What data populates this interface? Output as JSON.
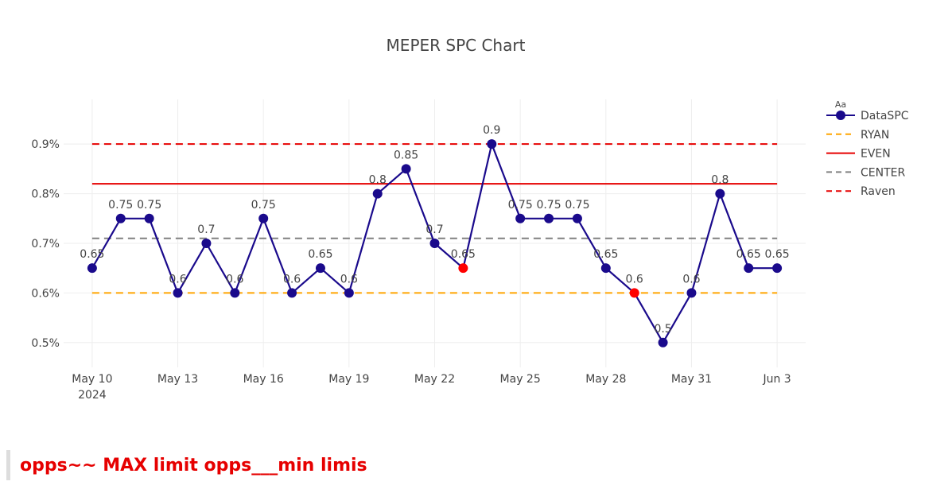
{
  "chart_data": {
    "type": "line",
    "title": "MEPER SPC Chart",
    "xlabel": "",
    "ylabel": "",
    "x_ticks": [
      {
        "date": "2024-05-10",
        "label": "May 10",
        "sublabel": "2024"
      },
      {
        "date": "2024-05-13",
        "label": "May 13",
        "sublabel": ""
      },
      {
        "date": "2024-05-16",
        "label": "May 16",
        "sublabel": ""
      },
      {
        "date": "2024-05-19",
        "label": "May 19",
        "sublabel": ""
      },
      {
        "date": "2024-05-22",
        "label": "May 22",
        "sublabel": ""
      },
      {
        "date": "2024-05-25",
        "label": "May 25",
        "sublabel": ""
      },
      {
        "date": "2024-05-28",
        "label": "May 28",
        "sublabel": ""
      },
      {
        "date": "2024-05-31",
        "label": "May 31",
        "sublabel": ""
      },
      {
        "date": "2024-06-03",
        "label": "Jun 3",
        "sublabel": ""
      }
    ],
    "y_ticks": [
      {
        "value": 0.5,
        "label": "0.5%"
      },
      {
        "value": 0.6,
        "label": "0.6%"
      },
      {
        "value": 0.7,
        "label": "0.7%"
      },
      {
        "value": 0.8,
        "label": "0.8%"
      },
      {
        "value": 0.9,
        "label": "0.9%"
      }
    ],
    "xlim": [
      "2024-05-09",
      "2024-06-04"
    ],
    "ylim": [
      0.45,
      0.99
    ],
    "grid": true,
    "legend_position": "top-right",
    "legend_hint": "Aa",
    "series": [
      {
        "name": "DataSPC",
        "color": "#1a0a8c",
        "highlight_color": "#ff0000",
        "points": [
          {
            "x": "2024-05-10",
            "y": 0.65,
            "label": "0.65"
          },
          {
            "x": "2024-05-11",
            "y": 0.75,
            "label": "0.75"
          },
          {
            "x": "2024-05-12",
            "y": 0.75,
            "label": "0.75"
          },
          {
            "x": "2024-05-13",
            "y": 0.6,
            "label": "0.6"
          },
          {
            "x": "2024-05-14",
            "y": 0.7,
            "label": "0.7"
          },
          {
            "x": "2024-05-15",
            "y": 0.6,
            "label": "0.6"
          },
          {
            "x": "2024-05-16",
            "y": 0.75,
            "label": "0.75"
          },
          {
            "x": "2024-05-17",
            "y": 0.6,
            "label": "0.6"
          },
          {
            "x": "2024-05-18",
            "y": 0.65,
            "label": "0.65"
          },
          {
            "x": "2024-05-19",
            "y": 0.6,
            "label": "0.6"
          },
          {
            "x": "2024-05-20",
            "y": 0.8,
            "label": "0.8"
          },
          {
            "x": "2024-05-21",
            "y": 0.85,
            "label": "0.85"
          },
          {
            "x": "2024-05-22",
            "y": 0.7,
            "label": "0.7"
          },
          {
            "x": "2024-05-23",
            "y": 0.65,
            "label": "0.65",
            "highlight": true
          },
          {
            "x": "2024-05-24",
            "y": 0.9,
            "label": "0.9"
          },
          {
            "x": "2024-05-25",
            "y": 0.75,
            "label": "0.75"
          },
          {
            "x": "2024-05-26",
            "y": 0.75,
            "label": "0.75"
          },
          {
            "x": "2024-05-27",
            "y": 0.75,
            "label": "0.75"
          },
          {
            "x": "2024-05-28",
            "y": 0.65,
            "label": "0.65"
          },
          {
            "x": "2024-05-29",
            "y": 0.6,
            "label": "0.6",
            "highlight": true
          },
          {
            "x": "2024-05-30",
            "y": 0.5,
            "label": "0.5"
          },
          {
            "x": "2024-05-31",
            "y": 0.6,
            "label": "0.6"
          },
          {
            "x": "2024-06-01",
            "y": 0.8,
            "label": "0.8"
          },
          {
            "x": "2024-06-02",
            "y": 0.65,
            "label": "0.65"
          },
          {
            "x": "2024-06-03",
            "y": 0.65,
            "label": "0.65"
          }
        ]
      }
    ],
    "reference_lines": [
      {
        "name": "RYAN",
        "y": 0.6,
        "color": "#ffa500",
        "dash": "dash"
      },
      {
        "name": "EVEN",
        "y": 0.82,
        "color": "#e60000",
        "dash": "solid"
      },
      {
        "name": "CENTER",
        "y": 0.71,
        "color": "#808080",
        "dash": "dash"
      },
      {
        "name": "Raven",
        "y": 0.9,
        "color": "#e60000",
        "dash": "dash"
      }
    ]
  },
  "note": {
    "text": "opps~~ MAX limit opps___min limis"
  }
}
